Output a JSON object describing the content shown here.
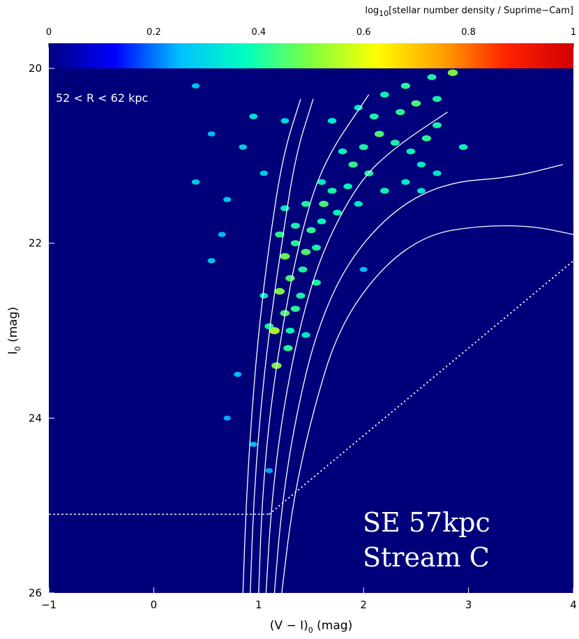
{
  "chart_data": {
    "type": "heatmap",
    "title": "",
    "xlabel": "(V − I)",
    "xlabel_sub": "0",
    "xlabel_unit": " (mag)",
    "ylabel": "I",
    "ylabel_sub": "0",
    "ylabel_unit": " (mag)",
    "xlim": [
      -1,
      4
    ],
    "ylim": [
      26,
      20
    ],
    "x_ticks": [
      -1,
      0,
      1,
      2,
      3,
      4
    ],
    "y_ticks": [
      20,
      22,
      24,
      26
    ],
    "colorbar": {
      "label_pre": "log",
      "label_sub": "10",
      "label_post": "[stellar number density / Suprime−Cam]",
      "range": [
        0,
        1
      ],
      "ticks": [
        "0",
        "0.2",
        "0.4",
        "0.6",
        "0.8",
        "1"
      ],
      "colors": [
        "#000080",
        "#0000ff",
        "#00c0ff",
        "#00ffc0",
        "#80ff40",
        "#ffff00",
        "#ffa000",
        "#ff2000",
        "#d00000"
      ]
    },
    "annotations": {
      "radius_range": "52 < R < 62 kpc",
      "field_line1": "SE 57kpc",
      "field_line2": "Stream C"
    },
    "background_color": "#00007a",
    "isochrones": [
      {
        "points": [
          [
            0.85,
            26.0
          ],
          [
            0.88,
            25.0
          ],
          [
            0.93,
            24.0
          ],
          [
            1.0,
            23.0
          ],
          [
            1.1,
            22.0
          ],
          [
            1.23,
            21.0
          ],
          [
            1.4,
            20.35
          ]
        ]
      },
      {
        "points": [
          [
            0.92,
            26.0
          ],
          [
            0.95,
            25.0
          ],
          [
            1.01,
            24.0
          ],
          [
            1.1,
            23.0
          ],
          [
            1.22,
            22.0
          ],
          [
            1.35,
            21.0
          ],
          [
            1.52,
            20.35
          ]
        ]
      },
      {
        "points": [
          [
            1.0,
            26.0
          ],
          [
            1.03,
            25.0
          ],
          [
            1.1,
            24.0
          ],
          [
            1.22,
            23.0
          ],
          [
            1.38,
            22.0
          ],
          [
            1.6,
            21.1
          ],
          [
            2.05,
            20.3
          ]
        ]
      },
      {
        "points": [
          [
            1.07,
            26.0
          ],
          [
            1.12,
            25.0
          ],
          [
            1.22,
            24.0
          ],
          [
            1.38,
            23.0
          ],
          [
            1.6,
            22.1
          ],
          [
            1.95,
            21.3
          ],
          [
            2.3,
            20.9
          ],
          [
            2.8,
            20.5
          ]
        ]
      },
      {
        "points": [
          [
            1.15,
            26.0
          ],
          [
            1.22,
            25.0
          ],
          [
            1.35,
            24.0
          ],
          [
            1.55,
            23.0
          ],
          [
            1.85,
            22.2
          ],
          [
            2.3,
            21.6
          ],
          [
            2.8,
            21.3
          ],
          [
            3.4,
            21.25
          ],
          [
            3.9,
            21.1
          ]
        ]
      },
      {
        "points": [
          [
            1.22,
            26.0
          ],
          [
            1.32,
            25.0
          ],
          [
            1.5,
            24.0
          ],
          [
            1.75,
            23.0
          ],
          [
            2.15,
            22.3
          ],
          [
            2.6,
            21.9
          ],
          [
            3.1,
            21.8
          ],
          [
            3.6,
            21.8
          ],
          [
            4.0,
            21.9
          ]
        ]
      }
    ],
    "completeness_limit": {
      "horizontal": {
        "y": 25.1,
        "x_range": [
          -1.0,
          1.1
        ]
      },
      "diagonal": {
        "from": [
          1.1,
          25.1
        ],
        "to": [
          4.0,
          22.2
        ]
      }
    },
    "density_clumps": [
      [
        1.17,
        23.4,
        0.5
      ],
      [
        1.15,
        23.0,
        0.55
      ],
      [
        1.25,
        22.8,
        0.45
      ],
      [
        1.35,
        22.75,
        0.42
      ],
      [
        1.2,
        22.55,
        0.5
      ],
      [
        1.3,
        22.4,
        0.45
      ],
      [
        1.42,
        22.3,
        0.4
      ],
      [
        1.25,
        22.15,
        0.48
      ],
      [
        1.35,
        22.0,
        0.42
      ],
      [
        1.45,
        22.1,
        0.45
      ],
      [
        1.55,
        22.05,
        0.4
      ],
      [
        1.2,
        21.9,
        0.42
      ],
      [
        1.35,
        21.8,
        0.4
      ],
      [
        1.5,
        21.85,
        0.42
      ],
      [
        1.6,
        21.75,
        0.38
      ],
      [
        1.25,
        21.6,
        0.38
      ],
      [
        1.45,
        21.55,
        0.4
      ],
      [
        1.62,
        21.55,
        0.45
      ],
      [
        1.75,
        21.65,
        0.38
      ],
      [
        1.7,
        21.4,
        0.4
      ],
      [
        1.85,
        21.35,
        0.38
      ],
      [
        1.6,
        21.3,
        0.36
      ],
      [
        1.9,
        21.1,
        0.42
      ],
      [
        2.05,
        21.2,
        0.4
      ],
      [
        1.8,
        20.95,
        0.38
      ],
      [
        2.0,
        20.9,
        0.4
      ],
      [
        2.15,
        20.75,
        0.45
      ],
      [
        2.3,
        20.85,
        0.4
      ],
      [
        2.45,
        20.95,
        0.38
      ],
      [
        2.6,
        20.8,
        0.42
      ],
      [
        2.7,
        20.65,
        0.4
      ],
      [
        2.1,
        20.55,
        0.4
      ],
      [
        2.35,
        20.5,
        0.42
      ],
      [
        2.5,
        20.4,
        0.45
      ],
      [
        2.7,
        20.35,
        0.4
      ],
      [
        2.2,
        20.3,
        0.38
      ],
      [
        2.4,
        20.2,
        0.42
      ],
      [
        2.65,
        20.1,
        0.4
      ],
      [
        2.85,
        20.05,
        0.5
      ],
      [
        2.95,
        20.9,
        0.38
      ],
      [
        2.55,
        21.1,
        0.36
      ],
      [
        2.4,
        21.3,
        0.36
      ],
      [
        2.2,
        21.4,
        0.38
      ],
      [
        1.95,
        21.55,
        0.36
      ],
      [
        1.55,
        22.45,
        0.4
      ],
      [
        1.4,
        22.6,
        0.4
      ],
      [
        1.28,
        23.2,
        0.42
      ],
      [
        1.1,
        22.95,
        0.4
      ],
      [
        1.3,
        23.0,
        0.38
      ],
      [
        1.45,
        23.05,
        0.36
      ],
      [
        1.05,
        22.6,
        0.34
      ],
      [
        1.7,
        20.6,
        0.36
      ],
      [
        1.95,
        20.45,
        0.36
      ],
      [
        2.55,
        21.4,
        0.34
      ],
      [
        2.7,
        21.2,
        0.34
      ],
      [
        0.95,
        20.55,
        0.34
      ],
      [
        1.25,
        20.6,
        0.32
      ],
      [
        0.4,
        21.3,
        0.3
      ],
      [
        0.7,
        21.5,
        0.28
      ],
      [
        0.85,
        20.9,
        0.3
      ],
      [
        1.05,
        21.2,
        0.3
      ],
      [
        0.55,
        22.2,
        0.28
      ],
      [
        0.8,
        23.5,
        0.26
      ],
      [
        0.7,
        24.0,
        0.24
      ],
      [
        0.95,
        24.3,
        0.26
      ],
      [
        1.1,
        24.6,
        0.24
      ],
      [
        0.4,
        20.2,
        0.28
      ],
      [
        0.55,
        20.75,
        0.26
      ],
      [
        0.65,
        21.9,
        0.26
      ],
      [
        2.0,
        22.3,
        0.26
      ]
    ]
  }
}
